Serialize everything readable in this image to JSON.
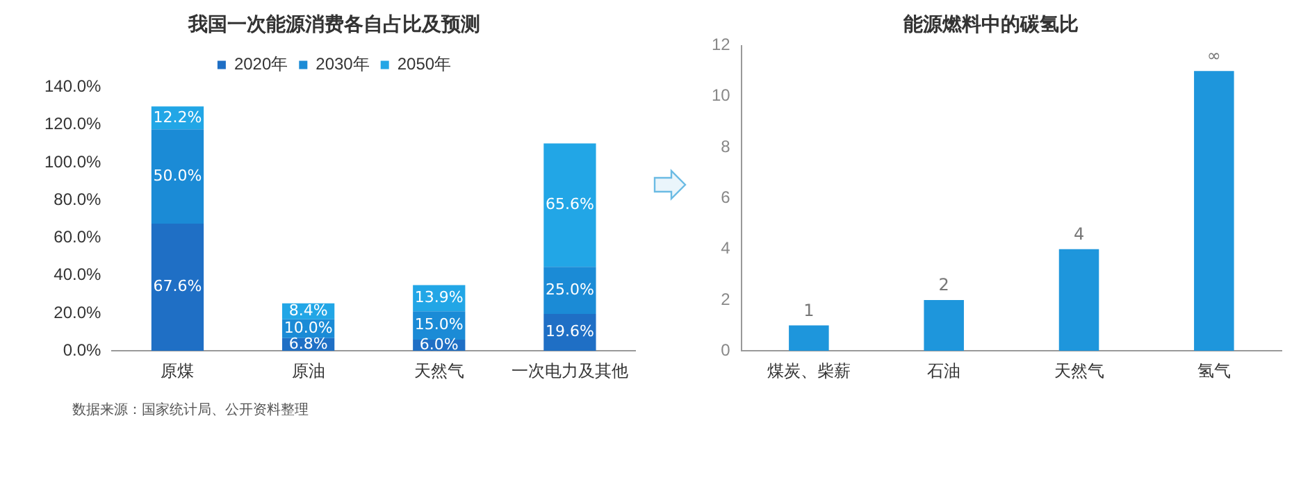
{
  "chart_data": [
    {
      "type": "bar",
      "title": "我国一次能源消费各自占比及预测",
      "categories": [
        "原煤",
        "原油",
        "天然气",
        "一次电力及其他"
      ],
      "stacked": true,
      "legend": "top",
      "grid": false,
      "series": [
        {
          "name": "2020年",
          "color": "#1f6fc5",
          "values": [
            67.6,
            6.8,
            6.0,
            19.6
          ],
          "value_labels": [
            "67.6%",
            "6.8%",
            "6.0%",
            "19.6%"
          ]
        },
        {
          "name": "2030年",
          "color": "#1b8bd6",
          "values": [
            50.0,
            10.0,
            15.0,
            25.0
          ],
          "value_labels": [
            "50.0%",
            "10.0%",
            "15.0%",
            "25.0%"
          ]
        },
        {
          "name": "2050年",
          "color": "#22a6e6",
          "values": [
            12.2,
            8.4,
            13.9,
            65.6
          ],
          "value_labels": [
            "12.2%",
            "8.4%",
            "13.9%",
            "65.6%"
          ]
        }
      ],
      "ylim": [
        0,
        140
      ],
      "yticks": [
        {
          "value": 0,
          "label": "0.0%"
        },
        {
          "value": 20,
          "label": "20.0%"
        },
        {
          "value": 40,
          "label": "40.0%"
        },
        {
          "value": 60,
          "label": "60.0%"
        },
        {
          "value": 80,
          "label": "80.0%"
        },
        {
          "value": 100,
          "label": "100.0%"
        },
        {
          "value": 120,
          "label": "120.0%"
        },
        {
          "value": 140,
          "label": "140.0%"
        }
      ],
      "annotations": [
        "数据来源：国家统计局、公开资料整理"
      ]
    },
    {
      "type": "bar",
      "title": "能源燃料中的碳氢比",
      "categories": [
        "煤炭、柴薪",
        "石油",
        "天然气",
        "氢气"
      ],
      "legend": false,
      "grid": false,
      "series": [
        {
          "color": "#1e96dc",
          "values": [
            1,
            2,
            4,
            11
          ],
          "value_labels": [
            "1",
            "2",
            "4",
            "∞"
          ]
        }
      ],
      "ylim": [
        0,
        12
      ],
      "yticks": [
        0,
        2,
        4,
        6,
        8,
        10,
        12
      ]
    }
  ]
}
